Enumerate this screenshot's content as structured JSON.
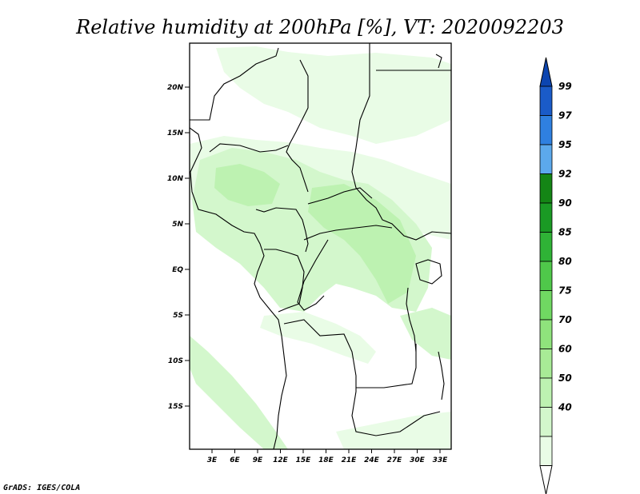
{
  "title": "Relative humidity at 200hPa [%], VT: 2020092203",
  "footer": "GrADS: IGES/COLA",
  "map": {
    "lon_labels": [
      "3E",
      "6E",
      "9E",
      "12E",
      "15E",
      "18E",
      "21E",
      "24E",
      "27E",
      "30E",
      "33E"
    ],
    "lat_labels": [
      "20N",
      "15N",
      "10N",
      "5N",
      "EQ",
      "5S",
      "10S",
      "15S"
    ]
  },
  "colorbar": {
    "levels": [
      "40",
      "50",
      "60",
      "70",
      "75",
      "80",
      "85",
      "90",
      "92",
      "95",
      "97",
      "99"
    ],
    "colors": [
      "#ffffff",
      "#e9fce6",
      "#d3f7cc",
      "#bdf2b1",
      "#a8eb96",
      "#8fe37c",
      "#70d862",
      "#4fc84a",
      "#2fb336",
      "#1a9a24",
      "#148515",
      "#5ca9ec",
      "#2f80e0",
      "#1a5bc8",
      "#0c45b0"
    ]
  },
  "colors": {
    "humid_light": "#e9fce6",
    "humid_mid": "#d3f7cc",
    "humid_strong": "#bdf2b1",
    "coastline": "#000000"
  }
}
